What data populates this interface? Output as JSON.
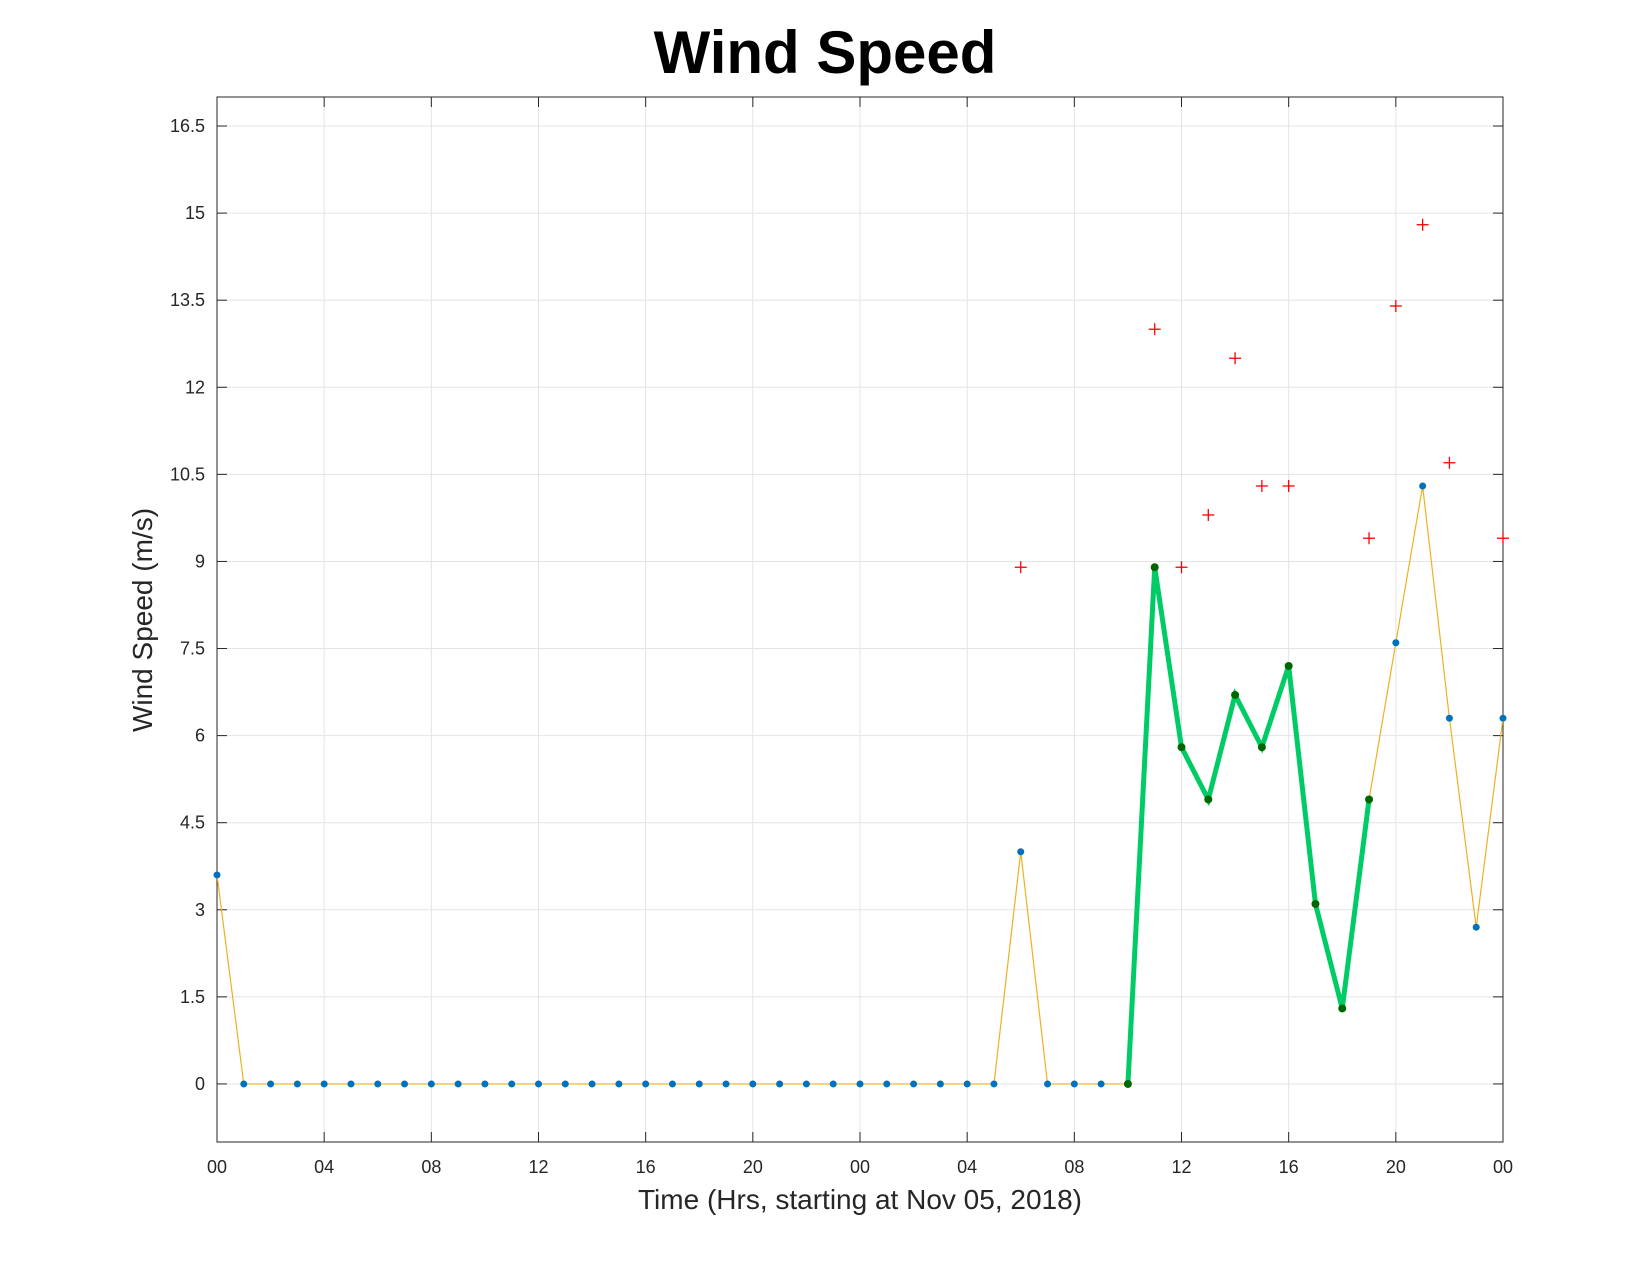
{
  "chart_data": {
    "type": "line",
    "title": "Wind Speed",
    "xlabel": "Time (Hrs, starting at Nov 05, 2018)",
    "ylabel": "Wind Speed (m/s)",
    "x_tick_labels": [
      "00",
      "04",
      "08",
      "12",
      "16",
      "20",
      "00",
      "04",
      "08",
      "12",
      "16",
      "20",
      "00"
    ],
    "y_tick_labels": [
      "0",
      "1.5",
      "3",
      "4.5",
      "6",
      "7.5",
      "9",
      "10.5",
      "12",
      "13.5",
      "15",
      "16.5"
    ],
    "ylim": [
      -1,
      17
    ],
    "xlim_hours": [
      0,
      48
    ],
    "grid": true,
    "series": [
      {
        "kind": "hourly_wind_speed",
        "color": "#EDB120",
        "marker_color": "#0072BD",
        "x_hours": [
          0,
          1,
          2,
          3,
          4,
          5,
          6,
          7,
          8,
          9,
          10,
          11,
          12,
          13,
          14,
          15,
          16,
          17,
          18,
          19,
          20,
          21,
          22,
          23,
          24,
          25,
          26,
          27,
          28,
          29,
          30,
          31,
          32,
          33,
          34,
          35,
          36,
          37,
          38,
          39,
          40,
          41,
          42,
          43,
          44,
          45,
          46,
          47,
          48
        ],
        "values": [
          3.6,
          0,
          0,
          0,
          0,
          0,
          0,
          0,
          0,
          0,
          0,
          0,
          0,
          0,
          0,
          0,
          0,
          0,
          0,
          0,
          0,
          0,
          0,
          0,
          0,
          0,
          0,
          0,
          0,
          0,
          4.0,
          0,
          0,
          0,
          0,
          8.9,
          5.8,
          4.9,
          6.7,
          5.8,
          7.2,
          3.1,
          1.3,
          4.9,
          7.6,
          10.3,
          6.3,
          2.7,
          6.3
        ]
      },
      {
        "kind": "highlighted_segment",
        "color": "#00CC66",
        "marker_color": "#006600",
        "x_hours": [
          34,
          35,
          36,
          37,
          38,
          39,
          40,
          41,
          42,
          43
        ],
        "values": [
          0,
          8.9,
          5.8,
          4.9,
          6.7,
          5.8,
          7.2,
          3.1,
          1.3,
          4.9
        ]
      },
      {
        "kind": "gusts",
        "color": "#FF0000",
        "marker": "+",
        "x_hours": [
          30,
          35,
          36,
          37,
          38,
          39,
          40,
          43,
          44,
          45,
          46,
          48
        ],
        "values": [
          8.9,
          13.0,
          8.9,
          9.8,
          12.5,
          10.3,
          10.3,
          9.4,
          13.4,
          14.8,
          10.7,
          9.4
        ]
      }
    ]
  }
}
